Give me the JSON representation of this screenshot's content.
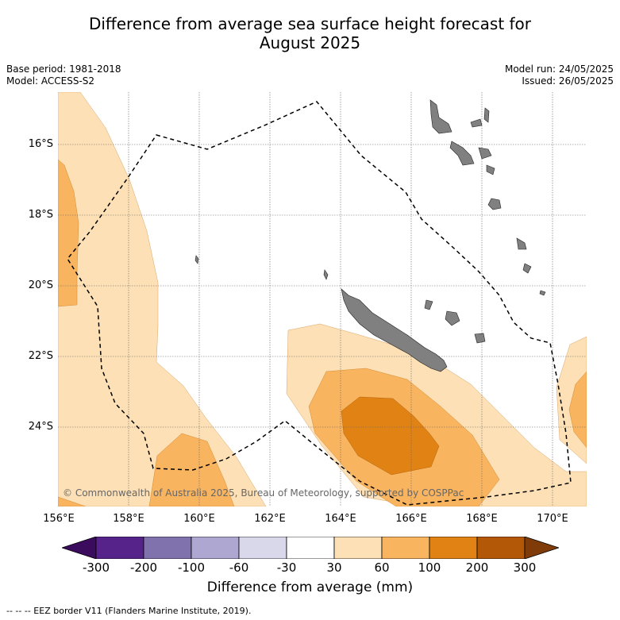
{
  "title_line1": "Difference from average sea surface height forecast for",
  "title_line2": "August 2025",
  "meta": {
    "base_period": "Base period: 1981-2018",
    "model": "Model: ACCESS-S2",
    "model_run": "Model run: 24/05/2025",
    "issued": "Issued: 26/05/2025"
  },
  "lat_labels": [
    "16°S",
    "18°S",
    "20°S",
    "22°S",
    "24°S"
  ],
  "lon_labels": [
    "156°E",
    "158°E",
    "160°E",
    "162°E",
    "164°E",
    "166°E",
    "168°E",
    "170°E"
  ],
  "copyright": "© Commonwealth of Australia 2025, Bureau of Meteorology, supported by COSPPac",
  "colorbar": {
    "ticks": [
      "-300",
      "-200",
      "-100",
      "-60",
      "-30",
      "30",
      "60",
      "100",
      "200",
      "300"
    ],
    "colors": [
      "#3b0b5e",
      "#55238a",
      "#8072ad",
      "#aea7d1",
      "#d8d8ea",
      "#ffffff",
      "#fde0b5",
      "#f9b460",
      "#e08214",
      "#b35806",
      "#7f3b08"
    ],
    "title": "Difference from average (mm)"
  },
  "footer": "-- -- -- EEZ border V11 (Flanders Marine Institute, 2019)."
}
